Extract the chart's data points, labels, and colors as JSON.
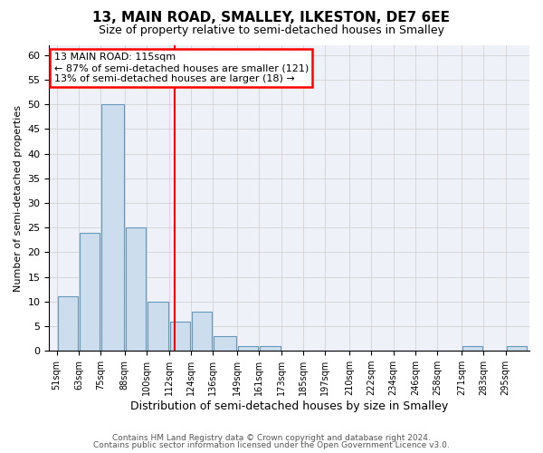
{
  "title1": "13, MAIN ROAD, SMALLEY, ILKESTON, DE7 6EE",
  "title2": "Size of property relative to semi-detached houses in Smalley",
  "xlabel": "Distribution of semi-detached houses by size in Smalley",
  "ylabel": "Number of semi-detached properties",
  "bin_labels": [
    "51sqm",
    "63sqm",
    "75sqm",
    "88sqm",
    "100sqm",
    "112sqm",
    "124sqm",
    "136sqm",
    "149sqm",
    "161sqm",
    "173sqm",
    "185sqm",
    "197sqm",
    "210sqm",
    "222sqm",
    "234sqm",
    "246sqm",
    "258sqm",
    "271sqm",
    "283sqm",
    "295sqm"
  ],
  "bin_edges": [
    51,
    63,
    75,
    88,
    100,
    112,
    124,
    136,
    149,
    161,
    173,
    185,
    197,
    210,
    222,
    234,
    246,
    258,
    271,
    283,
    295
  ],
  "heights": [
    11,
    24,
    50,
    25,
    10,
    6,
    8,
    3,
    1,
    1,
    0,
    0,
    0,
    0,
    0,
    0,
    0,
    0,
    1,
    0,
    1
  ],
  "bar_color": "#ccdded",
  "bar_edge_color": "#6699bb",
  "red_line_x": 115,
  "ylim": [
    0,
    62
  ],
  "yticks": [
    0,
    5,
    10,
    15,
    20,
    25,
    30,
    35,
    40,
    45,
    50,
    55,
    60
  ],
  "annotation_title": "13 MAIN ROAD: 115sqm",
  "annotation_line1": "← 87% of semi-detached houses are smaller (121)",
  "annotation_line2": "13% of semi-detached houses are larger (18) →",
  "footer1": "Contains HM Land Registry data © Crown copyright and database right 2024.",
  "footer2": "Contains public sector information licensed under the Open Government Licence v3.0.",
  "background_color": "#eef2f8",
  "grid_color": "#cccccc"
}
